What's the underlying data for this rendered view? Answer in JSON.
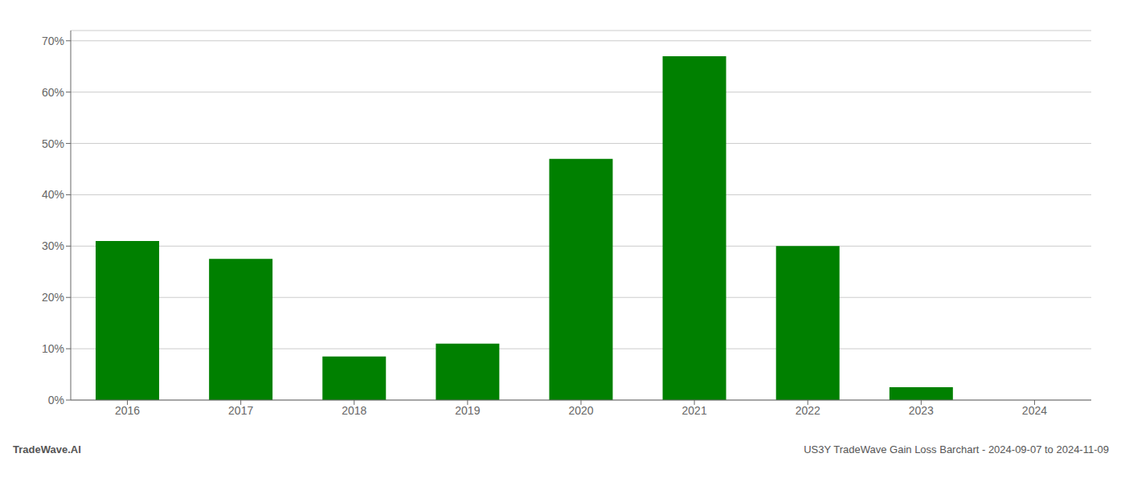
{
  "chart_data": {
    "type": "bar",
    "categories": [
      "2016",
      "2017",
      "2018",
      "2019",
      "2020",
      "2021",
      "2022",
      "2023",
      "2024"
    ],
    "values": [
      0.31,
      0.275,
      0.085,
      0.11,
      0.47,
      0.67,
      0.3,
      0.025,
      0.0
    ],
    "color": "#008000",
    "ylim": [
      0,
      0.72
    ],
    "yticks": [
      {
        "value": 0.0,
        "label": "0%"
      },
      {
        "value": 0.1,
        "label": "10%"
      },
      {
        "value": 0.2,
        "label": "20%"
      },
      {
        "value": 0.3,
        "label": "30%"
      },
      {
        "value": 0.4,
        "label": "40%"
      },
      {
        "value": 0.5,
        "label": "50%"
      },
      {
        "value": 0.6,
        "label": "60%"
      },
      {
        "value": 0.7,
        "label": "70%"
      }
    ],
    "grid": true,
    "annotations": [
      "TradeWave.AI",
      "US3Y TradeWave Gain Loss Barchart - 2024-09-07 to 2024-11-09"
    ]
  }
}
